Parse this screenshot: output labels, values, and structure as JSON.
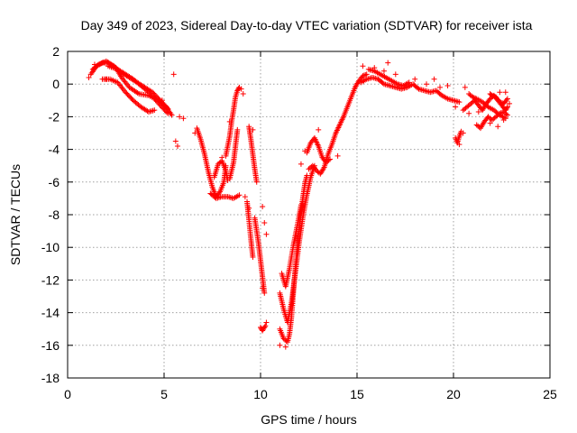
{
  "chart_data": {
    "type": "scatter",
    "title": "Day 349 of 2023, Sidereal Day-to-day VTEC variation (SDTVAR) for receiver ista",
    "xlabel": "GPS time / hours",
    "ylabel": "SDTVAR / TECUs",
    "xlim": [
      0,
      25
    ],
    "ylim": [
      -18,
      2
    ],
    "xticks": [
      0,
      5,
      10,
      15,
      20,
      25
    ],
    "xtick_labels": [
      "0",
      "5",
      "10",
      "15",
      "20",
      "25"
    ],
    "yticks": [
      2,
      0,
      -2,
      -4,
      -6,
      -8,
      -10,
      -12,
      -14,
      -16,
      -18
    ],
    "ytick_labels": [
      "2",
      "0",
      "-2",
      "-4",
      "-6",
      "-8",
      "-10",
      "-12",
      "-14",
      "-16",
      "-18"
    ],
    "grid": true,
    "marker": "+",
    "series": [
      {
        "name": "SDTVAR",
        "color": "#ff0000",
        "tracks": [
          [
            [
              1.2,
              0.6
            ],
            [
              1.5,
              1.1
            ],
            [
              1.8,
              1.3
            ],
            [
              2.1,
              1.3
            ],
            [
              2.5,
              1.0
            ],
            [
              2.8,
              0.4
            ],
            [
              3.2,
              -0.2
            ],
            [
              3.7,
              -0.6
            ],
            [
              4.2,
              -0.7
            ],
            [
              4.7,
              -1.0
            ],
            [
              5.1,
              -1.4
            ],
            [
              5.4,
              -1.9
            ]
          ],
          [
            [
              1.3,
              0.9
            ],
            [
              1.6,
              1.2
            ],
            [
              2.0,
              1.4
            ],
            [
              2.4,
              1.1
            ],
            [
              2.8,
              0.7
            ],
            [
              3.2,
              0.4
            ],
            [
              3.6,
              0.1
            ],
            [
              4.0,
              -0.2
            ],
            [
              4.4,
              -0.5
            ],
            [
              4.8,
              -1.0
            ],
            [
              5.2,
              -1.5
            ]
          ],
          [
            [
              2.1,
              1.1
            ],
            [
              2.6,
              0.9
            ],
            [
              3.0,
              0.6
            ],
            [
              3.4,
              0.3
            ],
            [
              3.8,
              -0.1
            ],
            [
              4.2,
              -0.5
            ],
            [
              4.5,
              -0.9
            ],
            [
              4.8,
              -1.3
            ],
            [
              5.2,
              -1.8
            ]
          ],
          [
            [
              1.8,
              0.3
            ],
            [
              2.2,
              0.3
            ],
            [
              2.6,
              0.1
            ],
            [
              3.0,
              -0.5
            ],
            [
              3.4,
              -1.0
            ],
            [
              3.8,
              -1.4
            ],
            [
              4.2,
              -1.7
            ],
            [
              4.5,
              -1.6
            ]
          ],
          [
            [
              6.7,
              -2.7
            ],
            [
              6.9,
              -3.4
            ],
            [
              7.1,
              -4.3
            ],
            [
              7.3,
              -5.4
            ],
            [
              7.5,
              -6.3
            ],
            [
              7.7,
              -6.9
            ],
            [
              7.9,
              -6.6
            ],
            [
              8.1,
              -6.0
            ],
            [
              8.2,
              -5.0
            ]
          ],
          [
            [
              7.4,
              -6.7
            ],
            [
              7.7,
              -7.0
            ],
            [
              8.0,
              -6.9
            ],
            [
              8.3,
              -6.9
            ],
            [
              8.6,
              -7.0
            ],
            [
              8.9,
              -6.8
            ]
          ],
          [
            [
              7.6,
              -5.7
            ],
            [
              7.8,
              -4.9
            ],
            [
              8.0,
              -4.7
            ],
            [
              8.2,
              -5.3
            ],
            [
              8.3,
              -5.9
            ]
          ],
          [
            [
              8.2,
              -4.4
            ],
            [
              8.4,
              -3.2
            ],
            [
              8.5,
              -2.3
            ],
            [
              8.6,
              -1.6
            ],
            [
              8.7,
              -0.8
            ],
            [
              8.8,
              -0.4
            ],
            [
              8.9,
              -0.2
            ]
          ],
          [
            [
              8.4,
              -5.8
            ],
            [
              8.6,
              -4.8
            ],
            [
              8.7,
              -3.8
            ],
            [
              8.8,
              -2.8
            ]
          ],
          [
            [
              9.4,
              -2.6
            ],
            [
              9.5,
              -3.4
            ],
            [
              9.6,
              -4.3
            ],
            [
              9.7,
              -5.2
            ],
            [
              9.8,
              -6.0
            ]
          ],
          [
            [
              9.7,
              -8.2
            ],
            [
              9.8,
              -9.0
            ],
            [
              9.9,
              -9.8
            ],
            [
              10.0,
              -10.8
            ],
            [
              10.1,
              -11.8
            ],
            [
              10.2,
              -12.8
            ]
          ],
          [
            [
              9.3,
              -7.2
            ],
            [
              9.4,
              -8.3
            ],
            [
              9.5,
              -9.5
            ],
            [
              9.6,
              -10.6
            ]
          ],
          [
            [
              10.0,
              -14.9
            ],
            [
              10.1,
              -15.1
            ],
            [
              10.25,
              -14.8
            ]
          ],
          [
            [
              11.0,
              -15.0
            ],
            [
              11.2,
              -15.6
            ],
            [
              11.4,
              -15.8
            ],
            [
              11.5,
              -15.3
            ],
            [
              11.6,
              -14.3
            ],
            [
              11.7,
              -12.8
            ],
            [
              11.8,
              -11.3
            ],
            [
              11.9,
              -10.0
            ],
            [
              12.0,
              -8.8
            ],
            [
              12.1,
              -7.8
            ],
            [
              12.2,
              -6.9
            ],
            [
              12.3,
              -6.1
            ],
            [
              12.4,
              -5.6
            ]
          ],
          [
            [
              11.0,
              -12.8
            ],
            [
              11.2,
              -13.8
            ],
            [
              11.4,
              -14.6
            ],
            [
              11.6,
              -13.4
            ],
            [
              11.8,
              -11.6
            ],
            [
              12.0,
              -9.7
            ],
            [
              12.2,
              -8.1
            ],
            [
              12.4,
              -6.8
            ],
            [
              12.6,
              -5.7
            ],
            [
              12.8,
              -5.0
            ]
          ],
          [
            [
              11.1,
              -11.6
            ],
            [
              11.3,
              -12.4
            ],
            [
              11.5,
              -11.3
            ],
            [
              11.7,
              -9.9
            ],
            [
              11.9,
              -8.7
            ],
            [
              12.1,
              -7.4
            ]
          ],
          [
            [
              12.4,
              -4.2
            ],
            [
              12.6,
              -3.6
            ],
            [
              12.8,
              -3.3
            ],
            [
              13.0,
              -3.8
            ],
            [
              13.2,
              -4.5
            ],
            [
              13.4,
              -4.8
            ],
            [
              13.6,
              -4.6
            ]
          ],
          [
            [
              12.5,
              -5.2
            ],
            [
              12.7,
              -5.0
            ],
            [
              12.9,
              -5.3
            ],
            [
              13.1,
              -5.5
            ],
            [
              13.3,
              -5.1
            ],
            [
              13.5,
              -4.3
            ],
            [
              13.7,
              -3.7
            ],
            [
              13.9,
              -3.0
            ],
            [
              14.1,
              -2.5
            ],
            [
              14.3,
              -2.0
            ],
            [
              14.5,
              -1.4
            ],
            [
              14.7,
              -0.8
            ],
            [
              14.9,
              -0.2
            ],
            [
              15.1,
              0.2
            ],
            [
              15.3,
              0.5
            ],
            [
              15.5,
              0.6
            ]
          ],
          [
            [
              15.2,
              0.1
            ],
            [
              15.5,
              0.3
            ],
            [
              15.8,
              0.4
            ],
            [
              16.1,
              0.3
            ],
            [
              16.4,
              0.0
            ],
            [
              16.7,
              -0.1
            ],
            [
              17.0,
              -0.2
            ],
            [
              17.3,
              -0.3
            ],
            [
              17.6,
              -0.2
            ],
            [
              17.9,
              0.0
            ],
            [
              18.2,
              -0.3
            ],
            [
              18.5,
              -0.4
            ],
            [
              18.8,
              -0.5
            ],
            [
              19.1,
              -0.4
            ],
            [
              19.4,
              -0.7
            ],
            [
              19.7,
              -0.9
            ],
            [
              20.0,
              -1.0
            ],
            [
              20.3,
              -1.1
            ]
          ],
          [
            [
              15.6,
              0.9
            ],
            [
              15.9,
              0.8
            ],
            [
              16.2,
              0.6
            ],
            [
              16.5,
              0.4
            ],
            [
              16.8,
              0.2
            ],
            [
              17.1,
              0.0
            ],
            [
              17.4,
              -0.1
            ],
            [
              17.7,
              0.1
            ]
          ],
          [
            [
              20.1,
              -3.3
            ],
            [
              20.2,
              -3.6
            ],
            [
              20.3,
              -3.2
            ],
            [
              20.4,
              -2.9
            ]
          ],
          [
            [
              20.5,
              -1.6
            ],
            [
              20.7,
              -1.4
            ],
            [
              20.9,
              -1.2
            ],
            [
              21.1,
              -1.0
            ],
            [
              21.3,
              -1.3
            ],
            [
              21.5,
              -1.6
            ],
            [
              21.7,
              -1.2
            ],
            [
              21.9,
              -0.9
            ],
            [
              22.1,
              -0.7
            ],
            [
              22.3,
              -1.0
            ],
            [
              22.5,
              -1.3
            ],
            [
              22.7,
              -1.6
            ],
            [
              22.8,
              -1.4
            ]
          ],
          [
            [
              21.2,
              -2.5
            ],
            [
              21.4,
              -2.7
            ],
            [
              21.6,
              -2.3
            ],
            [
              21.8,
              -2.0
            ],
            [
              22.0,
              -2.2
            ],
            [
              22.2,
              -2.0
            ],
            [
              22.4,
              -1.8
            ],
            [
              22.6,
              -1.7
            ],
            [
              22.8,
              -1.9
            ]
          ],
          [
            [
              20.8,
              -0.6
            ],
            [
              21.0,
              -0.8
            ],
            [
              21.2,
              -0.9
            ],
            [
              21.5,
              -1.1
            ],
            [
              21.8,
              -1.4
            ],
            [
              22.1,
              -1.6
            ],
            [
              22.4,
              -1.9
            ],
            [
              22.7,
              -2.1
            ]
          ],
          [
            [
              21.9,
              -0.6
            ],
            [
              22.0,
              -0.7
            ],
            [
              22.2,
              -0.8
            ],
            [
              22.4,
              -1.1
            ],
            [
              22.6,
              -1.2
            ],
            [
              22.8,
              -0.9
            ]
          ]
        ],
        "isolated_points": [
          [
            1.1,
            0.4
          ],
          [
            1.4,
            1.2
          ],
          [
            2.0,
            0.3
          ],
          [
            5.5,
            0.6
          ],
          [
            4.9,
            -1.0
          ],
          [
            5.6,
            -3.5
          ],
          [
            5.7,
            -3.8
          ],
          [
            5.8,
            -2.0
          ],
          [
            6.0,
            -2.1
          ],
          [
            6.6,
            -3.0
          ],
          [
            8.0,
            -4.5
          ],
          [
            8.4,
            -2.3
          ],
          [
            9.0,
            -0.3
          ],
          [
            9.1,
            -0.6
          ],
          [
            9.2,
            -6.9
          ],
          [
            9.4,
            -7.6
          ],
          [
            9.6,
            -2.8
          ],
          [
            10.1,
            -7.5
          ],
          [
            10.2,
            -8.5
          ],
          [
            10.3,
            -9.2
          ],
          [
            10.1,
            -12.5
          ],
          [
            10.3,
            -14.6
          ],
          [
            11.0,
            -16.0
          ],
          [
            11.3,
            -16.1
          ],
          [
            12.1,
            -4.9
          ],
          [
            12.3,
            -4.1
          ],
          [
            13.0,
            -2.8
          ],
          [
            14.0,
            -4.4
          ],
          [
            15.3,
            1.1
          ],
          [
            15.9,
            1.0
          ],
          [
            16.4,
            0.8
          ],
          [
            16.6,
            1.3
          ],
          [
            17.0,
            0.6
          ],
          [
            18.0,
            0.3
          ],
          [
            18.6,
            0.0
          ],
          [
            19.0,
            0.3
          ],
          [
            19.3,
            -0.2
          ],
          [
            19.7,
            -0.1
          ],
          [
            20.1,
            -1.4
          ],
          [
            20.6,
            -0.2
          ],
          [
            20.8,
            -1.8
          ],
          [
            21.3,
            -1.7
          ],
          [
            21.9,
            -2.4
          ],
          [
            22.3,
            -2.6
          ],
          [
            22.6,
            -2.2
          ],
          [
            22.9,
            -1.2
          ],
          [
            22.7,
            -0.5
          ],
          [
            22.4,
            -0.5
          ],
          [
            20.3,
            -3.7
          ],
          [
            20.5,
            -3.0
          ]
        ]
      }
    ]
  }
}
